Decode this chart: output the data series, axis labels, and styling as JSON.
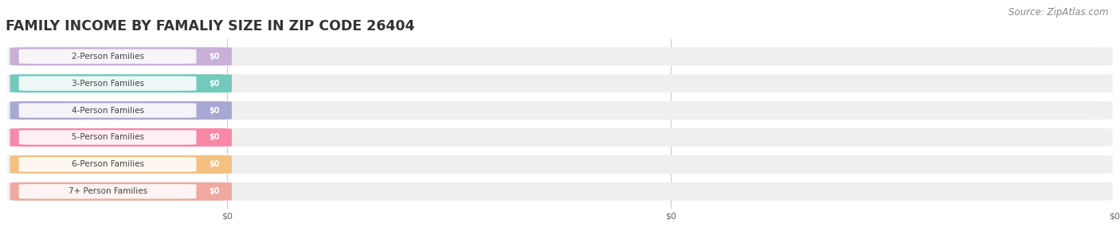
{
  "title": "FAMILY INCOME BY FAMALIY SIZE IN ZIP CODE 26404",
  "source_text": "Source: ZipAtlas.com",
  "categories": [
    "2-Person Families",
    "3-Person Families",
    "4-Person Families",
    "5-Person Families",
    "6-Person Families",
    "7+ Person Families"
  ],
  "values": [
    0,
    0,
    0,
    0,
    0,
    0
  ],
  "bar_colors": [
    "#c9b0d6",
    "#72c9bc",
    "#a8a8d4",
    "#f788a8",
    "#f5c080",
    "#f0a8a0"
  ],
  "bar_bg_color": "#efefef",
  "background_color": "#ffffff",
  "title_fontsize": 12.5,
  "source_fontsize": 8.5,
  "bar_height": 0.68,
  "figsize": [
    14.06,
    3.05
  ],
  "dpi": 100,
  "x_axis_color": "#aaaaaa",
  "label_text_color": "#444444",
  "value_text_color": "#ffffff",
  "grid_color": "#cccccc"
}
